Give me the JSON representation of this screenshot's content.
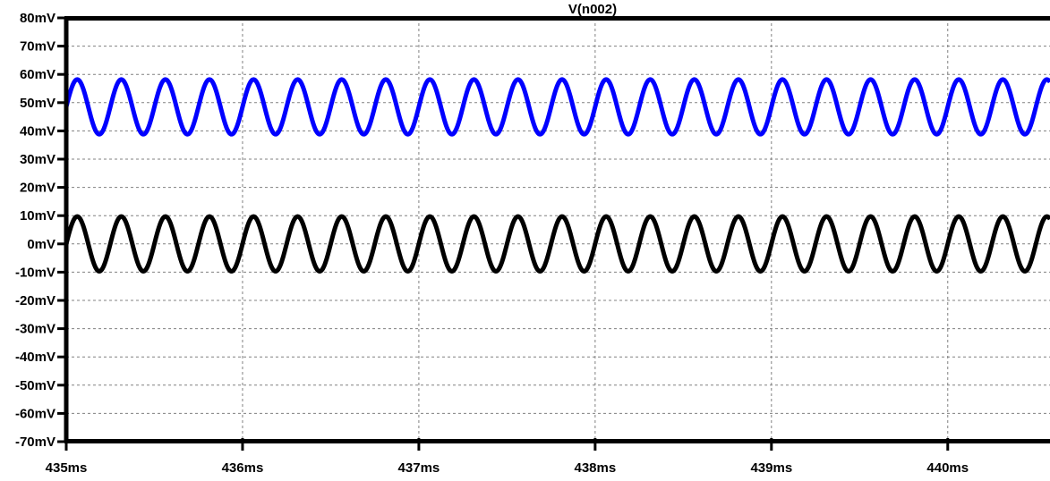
{
  "chart_data": {
    "type": "line",
    "title": "V(n002)",
    "xlabel": "",
    "ylabel": "",
    "x_unit": "ms",
    "y_unit": "mV",
    "xlim": [
      435,
      440.58
    ],
    "ylim": [
      -70,
      80
    ],
    "x_ticks": [
      "435ms",
      "436ms",
      "437ms",
      "438ms",
      "439ms",
      "440ms"
    ],
    "y_ticks": [
      "80mV",
      "70mV",
      "60mV",
      "50mV",
      "40mV",
      "30mV",
      "20mV",
      "10mV",
      "0mV",
      "-10mV",
      "-20mV",
      "-30mV",
      "-40mV",
      "-50mV",
      "-60mV",
      "-70mV"
    ],
    "grid": true,
    "series": [
      {
        "color": "#0000ff",
        "offset_mV": 48.5,
        "amplitude_mV": 9.7,
        "frequency_kHz": 4,
        "phase_deg": 0
      },
      {
        "color": "#000000",
        "offset_mV": 0,
        "amplitude_mV": 9.7,
        "frequency_kHz": 4,
        "phase_deg": 0
      }
    ]
  },
  "colors": {
    "background": "#ffffff",
    "axis": "#000000",
    "grid": "#808080"
  }
}
